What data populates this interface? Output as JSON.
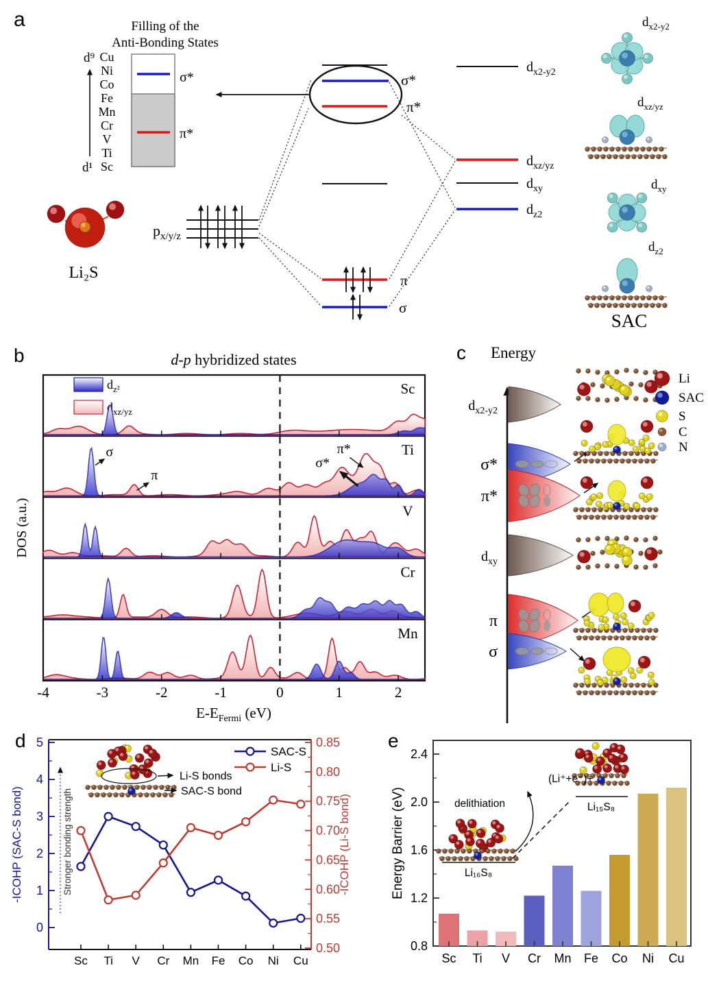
{
  "figure": {
    "background": "#ffffff"
  },
  "panel_a": {
    "label": "a",
    "filling_title_1": "Filling of the",
    "filling_title_2": "Anti-Bonding States",
    "d9": "d⁹",
    "d1": "d¹",
    "metals": [
      "Cu",
      "Ni",
      "Co",
      "Fe",
      "Mn",
      "Cr",
      "V",
      "Ti",
      "Sc"
    ],
    "box_sigma_star": "σ*",
    "box_pi_star": "π*",
    "li2s": "Li₂S",
    "p_base": "p",
    "p_sub": "x/y/z",
    "mo": {
      "sigma_star": "σ*",
      "pi_star": "π*",
      "pi": "π",
      "sigma": "σ"
    },
    "levels": {
      "dx2y2": {
        "base": "d",
        "sub": "x2-y2"
      },
      "dxzyz": {
        "base": "d",
        "sub": "xz/yz"
      },
      "dxy": {
        "base": "d",
        "sub": "xy"
      },
      "dz2": {
        "base": "d",
        "sub": "z2"
      }
    },
    "images": [
      {
        "base": "d",
        "sub": "x2-y2"
      },
      {
        "base": "d",
        "sub": "xz/yz"
      },
      {
        "base": "d",
        "sub": "xy"
      },
      {
        "base": "d",
        "sub": "z2"
      }
    ],
    "sac": "SAC",
    "colors": {
      "level_blue": "#1a1acc",
      "level_red": "#dd1515",
      "box_gray": "#cbcbcb"
    }
  },
  "panel_b": {
    "label": "b",
    "title_i": "d-p",
    "title_r": " hybridized states",
    "legend": [
      {
        "base": "d",
        "sub": "z²",
        "series": "blue"
      },
      {
        "base": "d",
        "sub": "xz/yz",
        "series": "red"
      }
    ],
    "ylabel": "DOS (a.u.)",
    "xlabel_base": "E-E",
    "xlabel_sub": "Fermi",
    "xlabel_rest": " (eV)",
    "annotations": {
      "sigma": "σ",
      "pi": "π",
      "sigma_star": "σ*",
      "pi_star": "π*"
    }
  },
  "panel_c": {
    "label": "c",
    "energy": "Energy",
    "levels": [
      {
        "base": "d",
        "sub": "x2-y2",
        "color": "brown",
        "sketch": "none"
      },
      {
        "base": "σ*",
        "sub": "",
        "color": "blue",
        "sketch": "sigma"
      },
      {
        "base": "π*",
        "sub": "",
        "color": "red",
        "sketch": "pi"
      },
      {
        "base": "d",
        "sub": "xy",
        "color": "brown",
        "sketch": "none"
      },
      {
        "base": "π",
        "sub": "",
        "color": "red",
        "sketch": "pi"
      },
      {
        "base": "σ",
        "sub": "",
        "color": "blue",
        "sketch": "sigma"
      }
    ],
    "legend": [
      {
        "name": "Li",
        "color_hi": "#f0a0a0",
        "color": "#a01515",
        "r": 11
      },
      {
        "name": "SAC",
        "color_hi": "#8090f0",
        "color": "#101d96",
        "r": 10
      },
      {
        "name": "S",
        "color_hi": "#fdfa90",
        "color": "#e3d416",
        "r": 8.5
      },
      {
        "name": "C",
        "color_hi": "#d0a070",
        "color": "#8a5a34",
        "r": 6
      },
      {
        "name": "N",
        "color_hi": "#e8eef8",
        "color": "#9fb0cc",
        "r": 6
      }
    ]
  },
  "panel_d": {
    "label": "d",
    "ylabel_left": "-ICOHP (SAC-S bond)",
    "ylabel_right": "-ICOHP (Li-S bond)",
    "inset": {
      "li_s_bonds": "Li-S bonds",
      "sac_s_bond": "SAC-S bond",
      "strength": "Stronger bonding strength"
    }
  },
  "panel_e": {
    "label": "e",
    "ylabel": "Energy Barrier (eV)",
    "delithiation": "delithiation",
    "li_plus": "(Li⁺+e⁻)+",
    "li16s8": "Li₁₆S₈",
    "li15s8": "Li₁₅S₈"
  },
  "chart_data": [
    {
      "type": "area",
      "panel": "b",
      "title": "d-p hybridized states",
      "xlabel": "E-E_Fermi (eV)",
      "ylabel": "DOS (a.u.)",
      "xlim": [
        -4.0,
        2.45
      ],
      "xticks": [
        -4,
        -3,
        -2,
        -1,
        0,
        1,
        2
      ],
      "fermi_line_x": 0,
      "legend": [
        "d_z2 (blue)",
        "d_xz/yz (pink)"
      ],
      "rows": [
        {
          "element": "Sc",
          "red_peaks": [
            [
              -3.75,
              0.1,
              0.12
            ],
            [
              -3.4,
              0.13,
              0.15
            ],
            [
              -2.55,
              0.14,
              0.09
            ],
            [
              0.2,
              0.05,
              0.25
            ],
            [
              0.8,
              0.06,
              0.3
            ],
            [
              1.5,
              0.08,
              0.3
            ],
            [
              2.0,
              0.2,
              0.12
            ],
            [
              2.25,
              0.3,
              0.09
            ],
            [
              2.45,
              0.26,
              0.1
            ]
          ],
          "blue_peaks": [
            [
              -2.87,
              0.55,
              0.05
            ],
            [
              2.1,
              0.07,
              0.1
            ],
            [
              2.35,
              0.12,
              0.08
            ],
            [
              2.5,
              0.1,
              0.06
            ]
          ]
        },
        {
          "element": "Ti",
          "red_peaks": [
            [
              -3.95,
              0.07,
              0.1
            ],
            [
              -3.6,
              0.12,
              0.14
            ],
            [
              -2.46,
              0.2,
              0.07
            ],
            [
              -0.7,
              0.07,
              0.15
            ],
            [
              -0.2,
              0.12,
              0.12
            ],
            [
              0.15,
              0.22,
              0.1
            ],
            [
              0.45,
              0.2,
              0.12
            ],
            [
              0.75,
              0.18,
              0.1
            ],
            [
              1.05,
              0.5,
              0.13
            ],
            [
              1.45,
              0.75,
              0.13
            ],
            [
              1.7,
              0.4,
              0.09
            ],
            [
              1.95,
              0.22,
              0.08
            ],
            [
              2.3,
              0.1,
              0.1
            ]
          ],
          "blue_peaks": [
            [
              -3.19,
              0.88,
              0.045
            ],
            [
              1.35,
              0.22,
              0.18
            ],
            [
              1.6,
              0.3,
              0.1
            ],
            [
              1.8,
              0.25,
              0.07
            ],
            [
              2.0,
              0.2,
              0.06
            ],
            [
              2.35,
              0.12,
              0.07
            ]
          ]
        },
        {
          "element": "V",
          "red_peaks": [
            [
              -3.9,
              0.1,
              0.12
            ],
            [
              -3.5,
              0.08,
              0.12
            ],
            [
              -2.6,
              0.16,
              0.08
            ],
            [
              -1.15,
              0.26,
              0.09
            ],
            [
              -0.9,
              0.3,
              0.1
            ],
            [
              -0.65,
              0.22,
              0.1
            ],
            [
              0.3,
              0.26,
              0.09
            ],
            [
              0.58,
              0.72,
              0.07
            ],
            [
              0.85,
              0.28,
              0.09
            ],
            [
              1.12,
              0.48,
              0.08
            ],
            [
              1.35,
              0.3,
              0.09
            ],
            [
              1.55,
              0.42,
              0.08
            ],
            [
              1.95,
              0.26,
              0.12
            ],
            [
              2.3,
              0.12,
              0.1
            ]
          ],
          "blue_peaks": [
            [
              -3.29,
              0.6,
              0.04
            ],
            [
              -3.12,
              0.55,
              0.04
            ],
            [
              1.1,
              0.3,
              0.25
            ],
            [
              1.6,
              0.22,
              0.2
            ],
            [
              2.0,
              0.14,
              0.12
            ]
          ]
        },
        {
          "element": "Cr",
          "red_peaks": [
            [
              -3.7,
              0.06,
              0.18
            ],
            [
              -2.65,
              0.42,
              0.05
            ],
            [
              -2.0,
              0.16,
              0.1
            ],
            [
              -0.72,
              0.58,
              0.08
            ],
            [
              -0.3,
              0.88,
              0.07
            ],
            [
              0.5,
              0.08,
              0.2
            ],
            [
              1.1,
              0.1,
              0.15
            ],
            [
              1.55,
              0.16,
              0.12
            ],
            [
              1.9,
              0.12,
              0.1
            ]
          ],
          "blue_peaks": [
            [
              -2.9,
              0.72,
              0.045
            ],
            [
              -1.75,
              0.1,
              0.08
            ],
            [
              0.45,
              0.16,
              0.1
            ],
            [
              0.67,
              0.34,
              0.08
            ],
            [
              0.85,
              0.26,
              0.08
            ],
            [
              1.15,
              0.2,
              0.1
            ],
            [
              1.4,
              0.24,
              0.09
            ],
            [
              1.62,
              0.3,
              0.09
            ],
            [
              1.85,
              0.3,
              0.08
            ],
            [
              2.05,
              0.24,
              0.08
            ],
            [
              2.3,
              0.12,
              0.08
            ]
          ]
        },
        {
          "element": "Mn",
          "red_peaks": [
            [
              -3.8,
              0.07,
              0.15
            ],
            [
              -2.2,
              0.13,
              0.1
            ],
            [
              -1.9,
              0.1,
              0.09
            ],
            [
              -1.5,
              0.07,
              0.1
            ],
            [
              -0.8,
              0.48,
              0.08
            ],
            [
              -0.5,
              0.8,
              0.07
            ],
            [
              -0.16,
              0.2,
              0.07
            ],
            [
              0.3,
              0.12,
              0.09
            ],
            [
              0.88,
              0.72,
              0.06
            ],
            [
              1.1,
              0.2,
              0.07
            ],
            [
              1.35,
              0.32,
              0.08
            ],
            [
              1.6,
              0.12,
              0.09
            ],
            [
              1.95,
              0.06,
              0.1
            ]
          ],
          "blue_peaks": [
            [
              -2.98,
              0.78,
              0.04
            ],
            [
              -2.74,
              0.52,
              0.04
            ],
            [
              0.62,
              0.28,
              0.07
            ],
            [
              1.0,
              0.33,
              0.07
            ],
            [
              1.2,
              0.12,
              0.06
            ]
          ]
        }
      ],
      "ti_annotations": [
        {
          "text": "σ",
          "x": -2.88,
          "f": 0.72,
          "arrow": [
            -3.12,
            0.56,
            -2.97,
            0.67
          ],
          "thick": false
        },
        {
          "text": "π",
          "x": -2.12,
          "f": 0.3,
          "arrow": [
            -2.42,
            0.1,
            -2.22,
            0.24
          ],
          "thick": false
        },
        {
          "text": "σ*",
          "x": 0.72,
          "f": 0.52,
          "arrow": [
            1.32,
            0.18,
            1.02,
            0.44
          ],
          "thick": true
        },
        {
          "text": "π*",
          "x": 1.08,
          "f": 0.78,
          "arrow": [
            1.18,
            0.7,
            1.4,
            0.52
          ],
          "thick": false
        }
      ]
    },
    {
      "type": "line",
      "panel": "d",
      "categories": [
        "Sc",
        "Ti",
        "V",
        "Cr",
        "Mn",
        "Fe",
        "Co",
        "Ni",
        "Cu"
      ],
      "series": [
        {
          "name": "SAC-S",
          "axis": "left",
          "color": "#15158f",
          "values": [
            1.65,
            3.0,
            2.73,
            2.23,
            0.95,
            1.28,
            0.85,
            0.12,
            0.25
          ]
        },
        {
          "name": "Li-S",
          "axis": "right",
          "color": "#bf3b32",
          "values": [
            0.7,
            0.582,
            0.59,
            0.645,
            0.705,
            0.692,
            0.715,
            0.752,
            0.745
          ]
        }
      ],
      "left_yticks": [
        0,
        1,
        2,
        3,
        4,
        5
      ],
      "right_yticks": [
        0.5,
        0.55,
        0.6,
        0.65,
        0.7,
        0.75,
        0.8,
        0.85
      ],
      "ylabel_left": "-ICOHP (SAC-S bond)",
      "ylabel_right": "-ICOHP (Li-S bond)"
    },
    {
      "type": "bar",
      "panel": "e",
      "categories": [
        "Sc",
        "Ti",
        "V",
        "Cr",
        "Mn",
        "Fe",
        "Co",
        "Ni",
        "Cu"
      ],
      "values": [
        1.07,
        0.93,
        0.92,
        1.22,
        1.47,
        1.26,
        1.56,
        2.07,
        2.12
      ],
      "colors": [
        "#dd7277",
        "#eba3a6",
        "#f2b8ba",
        "#5a5fc0",
        "#7d81cf",
        "#9fa3dd",
        "#c39b2e",
        "#ccab52",
        "#d9c37f"
      ],
      "yticks": [
        0.8,
        1.2,
        1.6,
        2.0,
        2.4
      ],
      "ylim": [
        0.8,
        2.515
      ],
      "ylabel": "Energy Barrier (eV)"
    }
  ]
}
